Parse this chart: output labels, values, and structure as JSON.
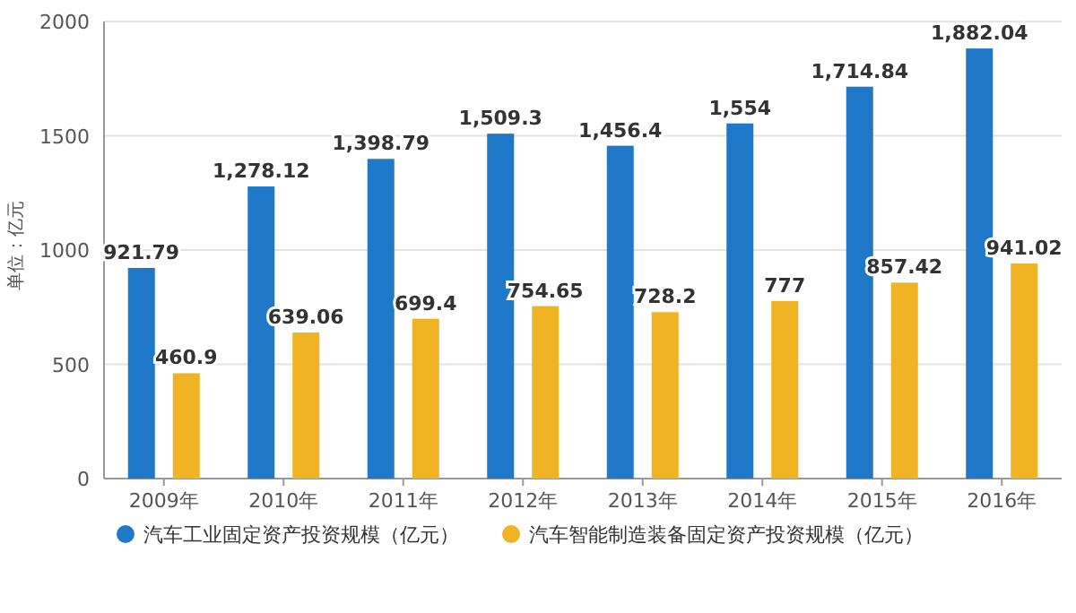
{
  "chart_data": {
    "type": "bar",
    "ylabel": "单位：亿元",
    "categories": [
      "2009年",
      "2010年",
      "2011年",
      "2012年",
      "2013年",
      "2014年",
      "2015年",
      "2016年"
    ],
    "series": [
      {
        "name": "汽车工业固定资产投资规模（亿元）",
        "color": "#1f78c8",
        "values": [
          921.79,
          1278.12,
          1398.79,
          1509.3,
          1456.4,
          1554,
          1714.84,
          1882.04
        ],
        "value_labels": [
          "921.79",
          "1,278.12",
          "1,398.79",
          "1,509.3",
          "1,456.4",
          "1,554",
          "1,714.84",
          "1,882.04"
        ]
      },
      {
        "name": "汽车智能制造装备固定资产投资规模（亿元）",
        "color": "#f0b323",
        "values": [
          460.9,
          639.06,
          699.4,
          754.65,
          728.2,
          777,
          857.42,
          941.02
        ],
        "value_labels": [
          "460.9",
          "639.06",
          "699.4",
          "754.65",
          "728.2",
          "777",
          "857.42",
          "941.02"
        ]
      }
    ],
    "ylim": [
      0,
      2000
    ],
    "yticks": [
      0,
      500,
      1000,
      1500,
      2000
    ],
    "grid": "y",
    "legend": "bottom"
  }
}
